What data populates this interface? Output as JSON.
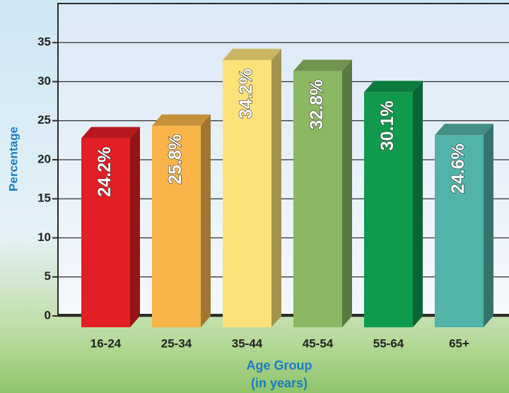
{
  "chart_data": {
    "type": "bar3d",
    "ylabel": "Percentage",
    "xlabel": [
      "Age Group",
      "(in years)"
    ],
    "categories": [
      "16-24",
      "25-34",
      "35-44",
      "45-54",
      "55-64",
      "65+"
    ],
    "values": [
      24.2,
      25.8,
      34.2,
      32.8,
      30.1,
      24.6
    ],
    "value_labels": [
      "24.2%",
      "25.8%",
      "34.2%",
      "32.8%",
      "30.1%",
      "24.6%"
    ],
    "colors": [
      "#e31e24",
      "#f9b54a",
      "#fde27a",
      "#8cb863",
      "#0f9a4e",
      "#52b3a8"
    ],
    "ylim": [
      0,
      40
    ],
    "yticks": [
      0,
      5,
      10,
      15,
      20,
      25,
      30,
      35
    ],
    "grid": true
  }
}
